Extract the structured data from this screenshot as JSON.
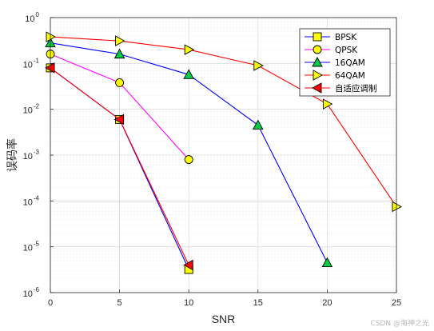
{
  "chart_data": {
    "type": "line",
    "xlabel": "SNR",
    "ylabel": "误码率",
    "xlim": [
      0,
      25
    ],
    "ylim_log10": [
      -6,
      0
    ],
    "y_scale": "log",
    "grid": true,
    "legend_position": "top-right",
    "x_ticks": [
      "0",
      "5",
      "10",
      "15",
      "20",
      "25"
    ],
    "y_ticks": [
      {
        "base": "10",
        "exp": "0"
      },
      {
        "base": "10",
        "exp": "-1"
      },
      {
        "base": "10",
        "exp": "-2"
      },
      {
        "base": "10",
        "exp": "-3"
      },
      {
        "base": "10",
        "exp": "-4"
      },
      {
        "base": "10",
        "exp": "-5"
      },
      {
        "base": "10",
        "exp": "-6"
      }
    ],
    "series": [
      {
        "name": "BPSK",
        "color": "#0000ff",
        "marker": "square",
        "marker_fill": "#ffff00",
        "x": [
          0,
          5,
          10
        ],
        "y": [
          0.08,
          0.006,
          3.2e-06
        ]
      },
      {
        "name": "QPSK",
        "color": "#ff00ff",
        "marker": "circle",
        "marker_fill": "#ffff00",
        "x": [
          0,
          5,
          10
        ],
        "y": [
          0.16,
          0.038,
          0.0008
        ]
      },
      {
        "name": "16QAM",
        "color": "#0000ff",
        "marker": "triangle-up",
        "marker_fill": "#00cc44",
        "x": [
          0,
          5,
          10,
          15,
          20
        ],
        "y": [
          0.28,
          0.16,
          0.057,
          0.0045,
          4.5e-06
        ]
      },
      {
        "name": "64QAM",
        "color": "#ff0000",
        "marker": "triangle-right",
        "marker_fill": "#ffff00",
        "x": [
          0,
          5,
          10,
          15,
          20,
          25
        ],
        "y": [
          0.38,
          0.31,
          0.2,
          0.09,
          0.013,
          7.5e-05
        ]
      },
      {
        "name": "自适应调制",
        "color": "#ff0000",
        "marker": "triangle-left",
        "marker_fill": "#ff0000",
        "x": [
          0,
          5,
          10
        ],
        "y": [
          0.08,
          0.006,
          4e-06
        ]
      }
    ]
  },
  "watermark": "CSDN @海神之光"
}
